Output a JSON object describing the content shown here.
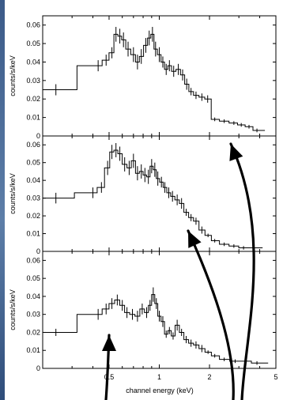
{
  "chart_data": [
    {
      "type": "line",
      "ylabel": "counts/s/keV",
      "ylim": [
        0,
        0.065
      ],
      "y_ticks": [
        "0.06",
        "0.05",
        "0.04",
        "0.03",
        "0.02",
        "0.01",
        "0"
      ],
      "series": [
        {
          "x": [
            0.24,
            0.43,
            0.48,
            0.52,
            0.55,
            0.58,
            0.61,
            0.65,
            0.7,
            0.74,
            0.78,
            0.83,
            0.87,
            0.91,
            0.95,
            1.0,
            1.05,
            1.1,
            1.15,
            1.22,
            1.3,
            1.38,
            1.46,
            1.55,
            1.66,
            1.8,
            1.95,
            2.15,
            2.45,
            2.8,
            3.1,
            3.45,
            3.85
          ],
          "y": [
            0.025,
            0.038,
            0.041,
            0.045,
            0.055,
            0.054,
            0.052,
            0.047,
            0.044,
            0.04,
            0.043,
            0.049,
            0.053,
            0.055,
            0.047,
            0.044,
            0.04,
            0.036,
            0.038,
            0.035,
            0.036,
            0.033,
            0.028,
            0.024,
            0.022,
            0.021,
            0.02,
            0.009,
            0.008,
            0.007,
            0.006,
            0.005,
            0.003
          ],
          "err": [
            0.003,
            0.003,
            0.003,
            0.003,
            0.004,
            0.004,
            0.004,
            0.004,
            0.004,
            0.004,
            0.004,
            0.004,
            0.004,
            0.004,
            0.004,
            0.004,
            0.003,
            0.003,
            0.003,
            0.003,
            0.003,
            0.003,
            0.003,
            0.002,
            0.002,
            0.002,
            0.002,
            0.001,
            0.001,
            0.001,
            0.001,
            0.001,
            0.001
          ]
        }
      ]
    },
    {
      "type": "line",
      "ylabel": "counts/s/keV",
      "ylim": [
        0,
        0.065
      ],
      "y_ticks": [
        "0.06",
        "0.05",
        "0.04",
        "0.03",
        "0.02",
        "0.01",
        "0"
      ],
      "series": [
        {
          "x": [
            0.24,
            0.4,
            0.45,
            0.49,
            0.52,
            0.55,
            0.58,
            0.62,
            0.66,
            0.7,
            0.74,
            0.78,
            0.82,
            0.86,
            0.9,
            0.94,
            0.98,
            1.03,
            1.08,
            1.14,
            1.2,
            1.28,
            1.36,
            1.45,
            1.55,
            1.66,
            1.8,
            1.96,
            2.15,
            2.45,
            2.8,
            3.2,
            3.65
          ],
          "y": [
            0.03,
            0.033,
            0.036,
            0.047,
            0.056,
            0.057,
            0.055,
            0.049,
            0.047,
            0.051,
            0.044,
            0.045,
            0.043,
            0.042,
            0.048,
            0.046,
            0.041,
            0.039,
            0.036,
            0.033,
            0.031,
            0.029,
            0.027,
            0.022,
            0.019,
            0.017,
            0.012,
            0.009,
            0.006,
            0.004,
            0.003,
            0.002,
            0.002
          ],
          "err": [
            0.003,
            0.003,
            0.003,
            0.004,
            0.004,
            0.004,
            0.004,
            0.004,
            0.004,
            0.004,
            0.004,
            0.004,
            0.004,
            0.004,
            0.004,
            0.004,
            0.004,
            0.003,
            0.003,
            0.003,
            0.003,
            0.003,
            0.003,
            0.002,
            0.002,
            0.002,
            0.002,
            0.001,
            0.001,
            0.001,
            0.001,
            0.001,
            0.001
          ]
        }
      ]
    },
    {
      "type": "line",
      "ylabel": "counts/s/keV",
      "xlabel": "channel energy (keV)",
      "ylim": [
        0,
        0.065
      ],
      "y_ticks": [
        "0.06",
        "0.05",
        "0.04",
        "0.03",
        "0.02",
        "0.01",
        "0"
      ],
      "x_ticks": [
        "0.5",
        "1",
        "2",
        "5"
      ],
      "x_tick_values": [
        0.5,
        1,
        2,
        5
      ],
      "x_scale": "log",
      "xlim": [
        0.2,
        5
      ],
      "series": [
        {
          "x": [
            0.24,
            0.43,
            0.48,
            0.52,
            0.56,
            0.6,
            0.64,
            0.69,
            0.74,
            0.79,
            0.84,
            0.88,
            0.92,
            0.96,
            1.0,
            1.05,
            1.1,
            1.15,
            1.21,
            1.28,
            1.36,
            1.45,
            1.55,
            1.66,
            1.8,
            1.96,
            2.15,
            2.45,
            2.85,
            3.3,
            3.85
          ],
          "y": [
            0.02,
            0.03,
            0.033,
            0.036,
            0.038,
            0.035,
            0.031,
            0.03,
            0.029,
            0.033,
            0.031,
            0.035,
            0.041,
            0.036,
            0.029,
            0.026,
            0.019,
            0.021,
            0.018,
            0.024,
            0.02,
            0.016,
            0.014,
            0.013,
            0.011,
            0.009,
            0.007,
            0.005,
            0.004,
            0.004,
            0.003
          ],
          "err": [
            0.002,
            0.003,
            0.003,
            0.003,
            0.003,
            0.003,
            0.003,
            0.003,
            0.003,
            0.003,
            0.003,
            0.003,
            0.004,
            0.003,
            0.003,
            0.003,
            0.002,
            0.002,
            0.002,
            0.003,
            0.002,
            0.002,
            0.002,
            0.002,
            0.002,
            0.001,
            0.001,
            0.001,
            0.001,
            0.001,
            0.001
          ]
        }
      ]
    }
  ]
}
